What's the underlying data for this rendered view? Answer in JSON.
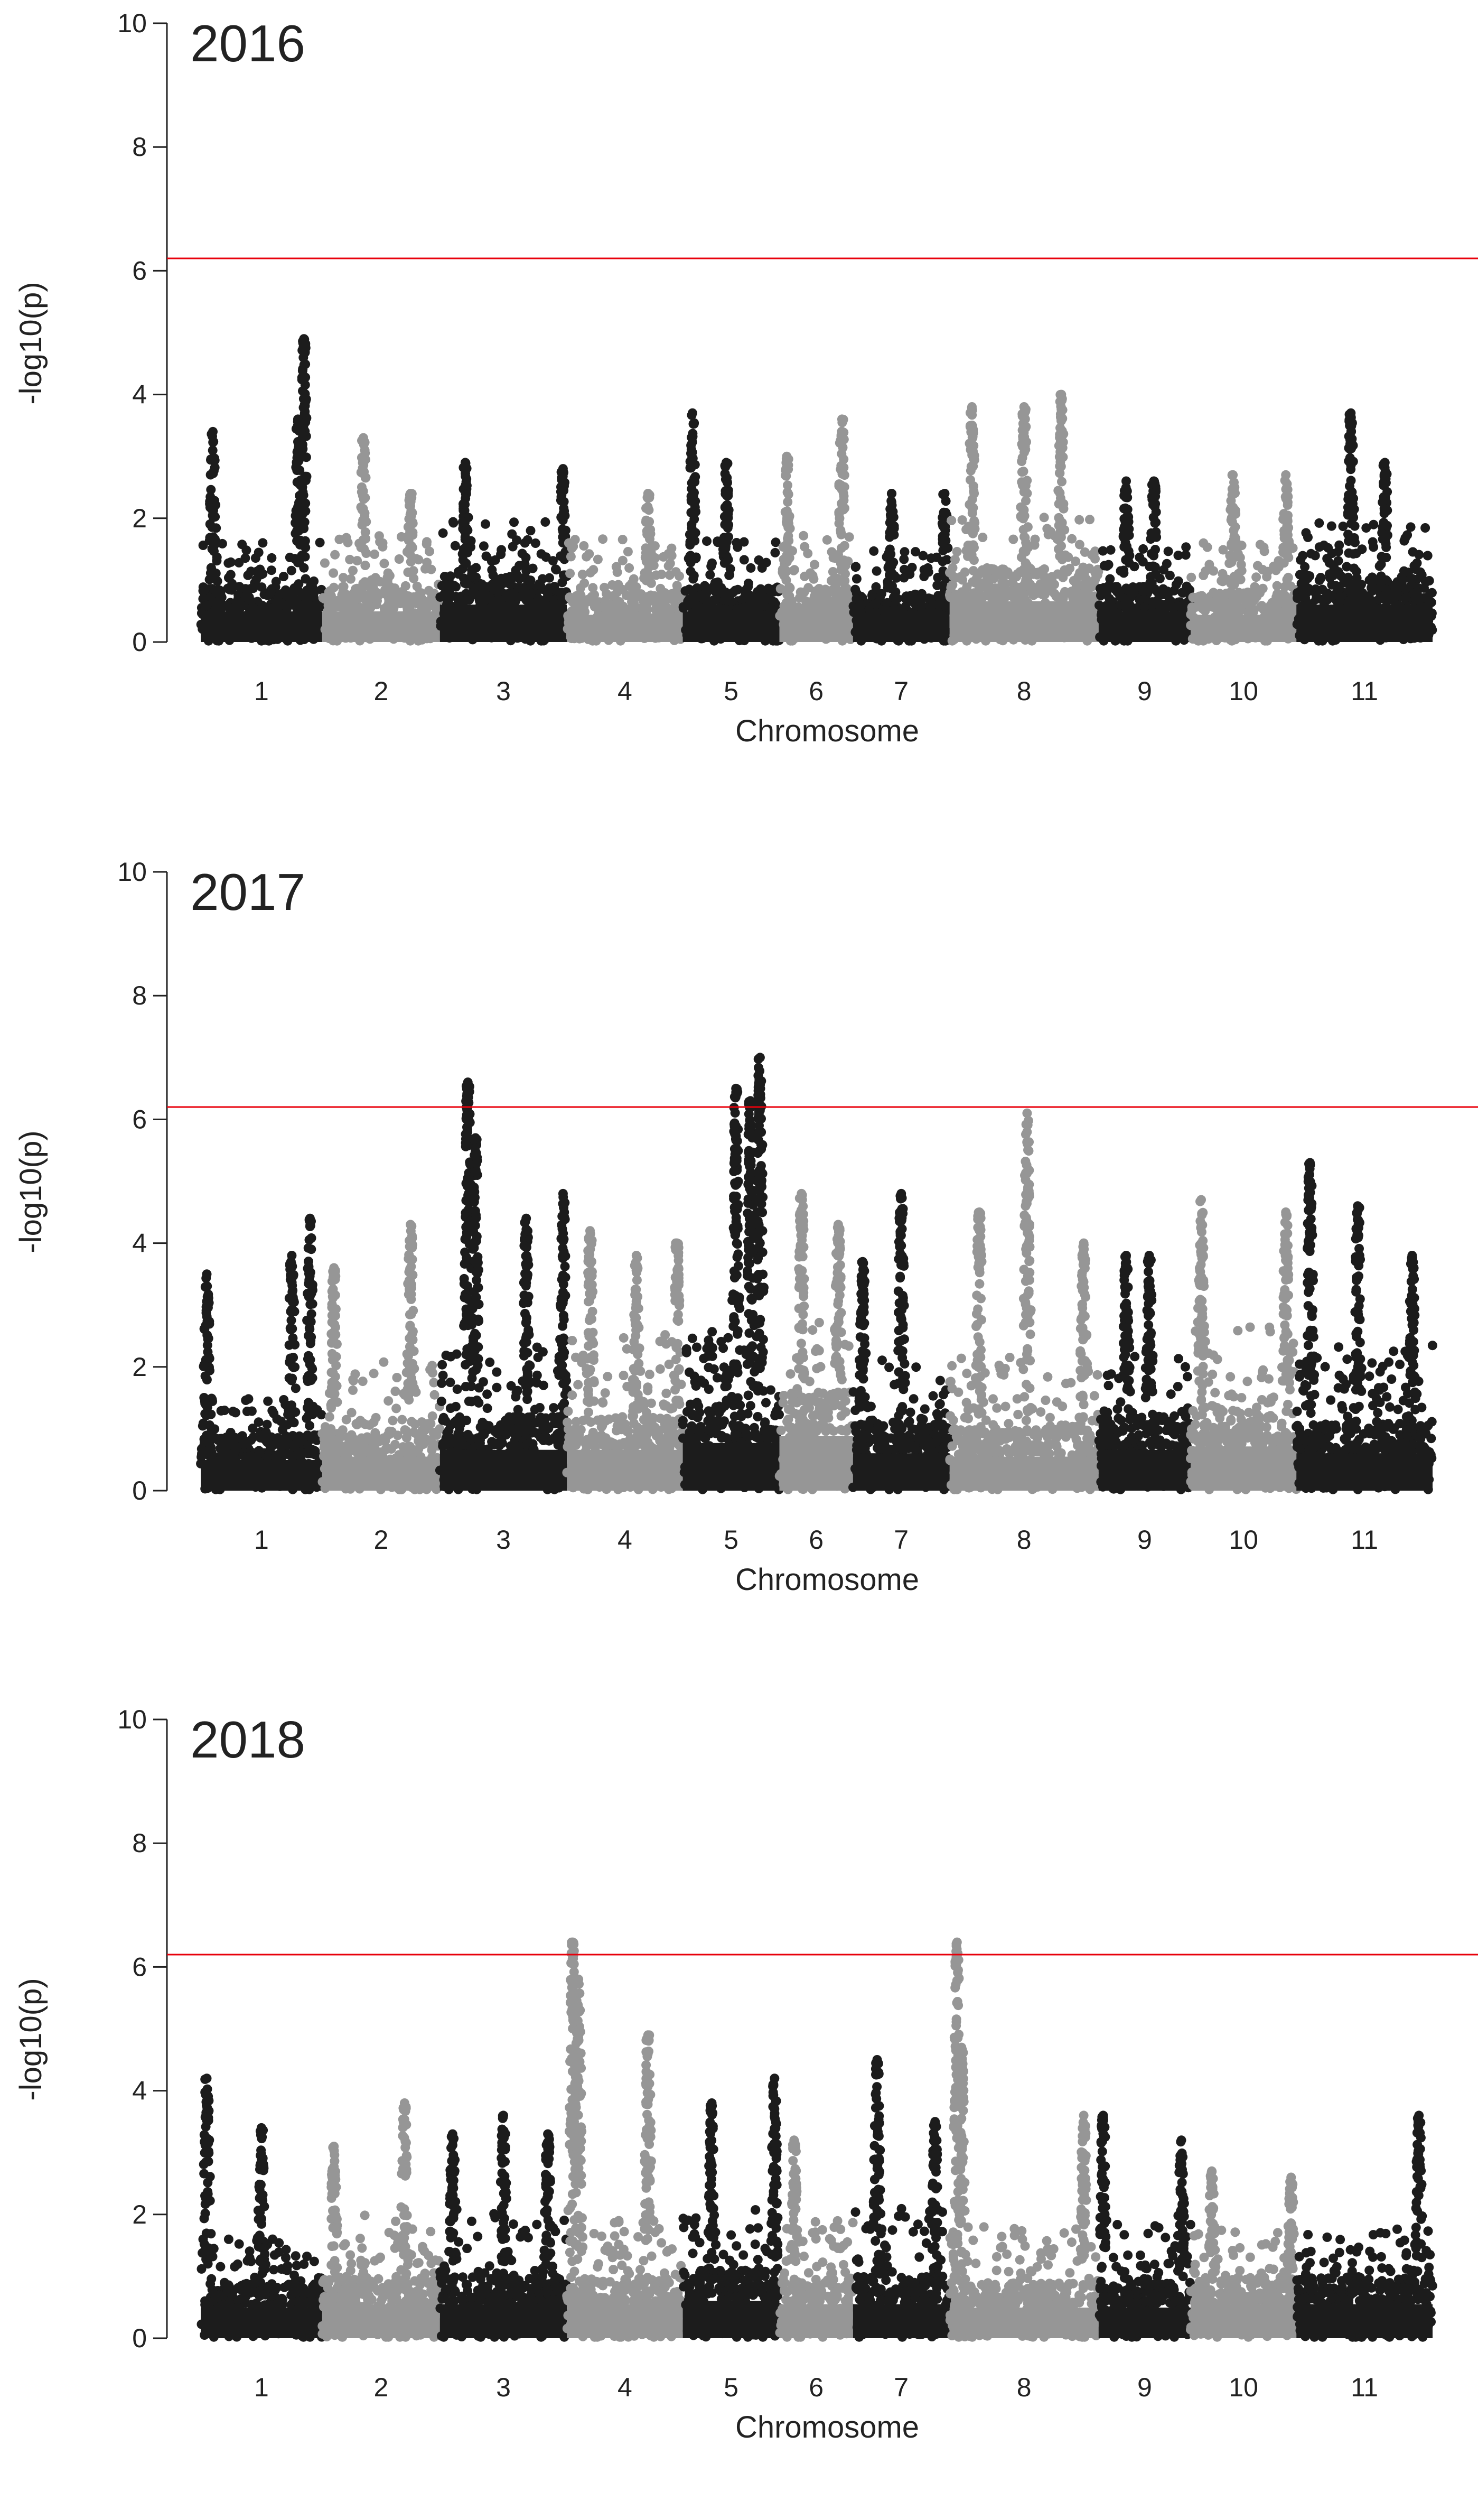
{
  "chart_data": [
    {
      "type": "scatter",
      "subtype": "manhattan",
      "title": "2016",
      "xlabel": "Chromosome",
      "ylabel": "-log10(p)",
      "ylim": [
        0,
        10
      ],
      "yticks": [
        "0",
        "2",
        "4",
        "6",
        "8",
        "10"
      ],
      "threshold": 6.2,
      "threshold_color": "#e8000b",
      "colors": [
        "#1c1c1c",
        "#969696"
      ],
      "chromosomes": [
        {
          "label": "1",
          "width": 1.32,
          "base": 0.9,
          "spread": 1.1,
          "peaks": [
            [
              0.1,
              3.4
            ],
            [
              0.85,
              4.9
            ],
            [
              0.8,
              3.6
            ]
          ]
        },
        {
          "label": "2",
          "width": 1.28,
          "base": 0.9,
          "spread": 1.2,
          "peaks": [
            [
              0.35,
              3.3
            ],
            [
              0.75,
              2.4
            ]
          ]
        },
        {
          "label": "3",
          "width": 1.38,
          "base": 1.1,
          "spread": 1.3,
          "peaks": [
            [
              0.2,
              2.9
            ],
            [
              0.97,
              2.8
            ]
          ]
        },
        {
          "label": "4",
          "width": 1.26,
          "base": 0.8,
          "spread": 1.2,
          "peaks": [
            [
              0.7,
              2.4
            ]
          ]
        },
        {
          "label": "5",
          "width": 1.05,
          "base": 0.9,
          "spread": 1.1,
          "peaks": [
            [
              0.1,
              3.7
            ],
            [
              0.45,
              2.9
            ]
          ]
        },
        {
          "label": "6",
          "width": 0.8,
          "base": 0.9,
          "spread": 1.2,
          "peaks": [
            [
              0.1,
              3.0
            ],
            [
              0.85,
              3.6
            ]
          ]
        },
        {
          "label": "7",
          "width": 1.05,
          "base": 0.8,
          "spread": 1.0,
          "peaks": [
            [
              0.4,
              2.4
            ],
            [
              0.95,
              2.4
            ]
          ]
        },
        {
          "label": "8",
          "width": 1.62,
          "base": 1.2,
          "spread": 1.3,
          "peaks": [
            [
              0.15,
              3.8
            ],
            [
              0.5,
              3.8
            ],
            [
              0.75,
              4.0
            ]
          ]
        },
        {
          "label": "9",
          "width": 1.0,
          "base": 0.9,
          "spread": 1.0,
          "peaks": [
            [
              0.3,
              2.6
            ],
            [
              0.6,
              2.6
            ]
          ]
        },
        {
          "label": "10",
          "width": 1.15,
          "base": 0.8,
          "spread": 1.2,
          "peaks": [
            [
              0.4,
              2.7
            ],
            [
              0.9,
              2.7
            ]
          ]
        },
        {
          "label": "11",
          "width": 1.48,
          "base": 1.1,
          "spread": 1.3,
          "peaks": [
            [
              0.4,
              3.7
            ],
            [
              0.65,
              2.9
            ]
          ]
        }
      ]
    },
    {
      "type": "scatter",
      "subtype": "manhattan",
      "title": "2017",
      "xlabel": "Chromosome",
      "ylabel": "-log10(p)",
      "ylim": [
        0,
        10
      ],
      "yticks": [
        "0",
        "2",
        "4",
        "6",
        "8",
        "10"
      ],
      "threshold": 6.2,
      "threshold_color": "#e8000b",
      "colors": [
        "#1c1c1c",
        "#969696"
      ],
      "chromosomes": [
        {
          "label": "1",
          "width": 1.32,
          "base": 0.9,
          "spread": 1.0,
          "peaks": [
            [
              0.05,
              3.5
            ],
            [
              0.9,
              4.4
            ],
            [
              0.75,
              3.8
            ]
          ]
        },
        {
          "label": "2",
          "width": 1.28,
          "base": 1.0,
          "spread": 1.5,
          "peaks": [
            [
              0.1,
              3.6
            ],
            [
              0.75,
              4.3
            ]
          ]
        },
        {
          "label": "3",
          "width": 1.38,
          "base": 1.2,
          "spread": 1.6,
          "peaks": [
            [
              0.22,
              6.6
            ],
            [
              0.28,
              5.7
            ],
            [
              0.68,
              4.4
            ],
            [
              0.97,
              4.8
            ]
          ]
        },
        {
          "label": "4",
          "width": 1.26,
          "base": 1.2,
          "spread": 1.8,
          "peaks": [
            [
              0.2,
              4.2
            ],
            [
              0.6,
              3.8
            ],
            [
              0.95,
              4.0
            ]
          ]
        },
        {
          "label": "5",
          "width": 1.05,
          "base": 1.4,
          "spread": 1.8,
          "peaks": [
            [
              0.55,
              6.5
            ],
            [
              0.8,
              7.0
            ],
            [
              0.7,
              6.3
            ]
          ]
        },
        {
          "label": "6",
          "width": 0.8,
          "base": 1.6,
          "spread": 1.8,
          "peaks": [
            [
              0.3,
              4.8
            ],
            [
              0.8,
              4.3
            ]
          ]
        },
        {
          "label": "7",
          "width": 1.05,
          "base": 1.1,
          "spread": 1.5,
          "peaks": [
            [
              0.1,
              3.7
            ],
            [
              0.5,
              4.8
            ]
          ]
        },
        {
          "label": "8",
          "width": 1.62,
          "base": 1.0,
          "spread": 1.6,
          "peaks": [
            [
              0.2,
              4.5
            ],
            [
              0.52,
              6.1
            ],
            [
              0.9,
              4.0
            ]
          ]
        },
        {
          "label": "9",
          "width": 1.0,
          "base": 1.2,
          "spread": 1.5,
          "peaks": [
            [
              0.3,
              3.8
            ],
            [
              0.55,
              3.8
            ]
          ]
        },
        {
          "label": "10",
          "width": 1.15,
          "base": 1.3,
          "spread": 1.9,
          "peaks": [
            [
              0.1,
              4.7
            ],
            [
              0.9,
              4.5
            ]
          ]
        },
        {
          "label": "11",
          "width": 1.48,
          "base": 1.1,
          "spread": 1.7,
          "peaks": [
            [
              0.1,
              5.3
            ],
            [
              0.45,
              4.6
            ],
            [
              0.85,
              3.8
            ]
          ]
        }
      ]
    },
    {
      "type": "scatter",
      "subtype": "manhattan",
      "title": "2018",
      "xlabel": "Chromosome",
      "ylabel": "-log10(p)",
      "ylim": [
        0,
        10
      ],
      "yticks": [
        "0",
        "2",
        "4",
        "6",
        "8",
        "10"
      ],
      "threshold": 6.2,
      "threshold_color": "#e8000b",
      "colors": [
        "#1c1c1c",
        "#969696"
      ],
      "chromosomes": [
        {
          "label": "1",
          "width": 1.32,
          "base": 0.9,
          "spread": 1.1,
          "peaks": [
            [
              0.05,
              4.2
            ],
            [
              0.5,
              3.4
            ]
          ]
        },
        {
          "label": "2",
          "width": 1.28,
          "base": 1.0,
          "spread": 1.4,
          "peaks": [
            [
              0.1,
              3.1
            ],
            [
              0.7,
              3.8
            ]
          ]
        },
        {
          "label": "3",
          "width": 1.38,
          "base": 1.0,
          "spread": 1.5,
          "peaks": [
            [
              0.1,
              3.3
            ],
            [
              0.5,
              3.6
            ],
            [
              0.85,
              3.3
            ]
          ]
        },
        {
          "label": "4",
          "width": 1.26,
          "base": 1.0,
          "spread": 1.5,
          "peaks": [
            [
              0.05,
              6.4
            ],
            [
              0.1,
              5.8
            ],
            [
              0.7,
              4.9
            ]
          ]
        },
        {
          "label": "5",
          "width": 1.05,
          "base": 1.1,
          "spread": 1.5,
          "peaks": [
            [
              0.3,
              3.8
            ],
            [
              0.95,
              4.2
            ]
          ]
        },
        {
          "label": "6",
          "width": 0.8,
          "base": 1.0,
          "spread": 1.4,
          "peaks": [
            [
              0.2,
              3.2
            ]
          ]
        },
        {
          "label": "7",
          "width": 1.05,
          "base": 1.0,
          "spread": 1.5,
          "peaks": [
            [
              0.25,
              4.5
            ],
            [
              0.85,
              3.5
            ]
          ]
        },
        {
          "label": "8",
          "width": 1.62,
          "base": 0.9,
          "spread": 1.3,
          "peaks": [
            [
              0.05,
              6.4
            ],
            [
              0.08,
              4.7
            ],
            [
              0.9,
              3.6
            ]
          ]
        },
        {
          "label": "9",
          "width": 1.0,
          "base": 0.9,
          "spread": 1.3,
          "peaks": [
            [
              0.05,
              3.6
            ],
            [
              0.9,
              3.2
            ]
          ]
        },
        {
          "label": "10",
          "width": 1.15,
          "base": 1.0,
          "spread": 1.2,
          "peaks": [
            [
              0.2,
              2.7
            ],
            [
              0.95,
              2.6
            ]
          ]
        },
        {
          "label": "11",
          "width": 1.48,
          "base": 1.0,
          "spread": 1.2,
          "peaks": [
            [
              0.9,
              3.6
            ]
          ]
        }
      ]
    }
  ]
}
